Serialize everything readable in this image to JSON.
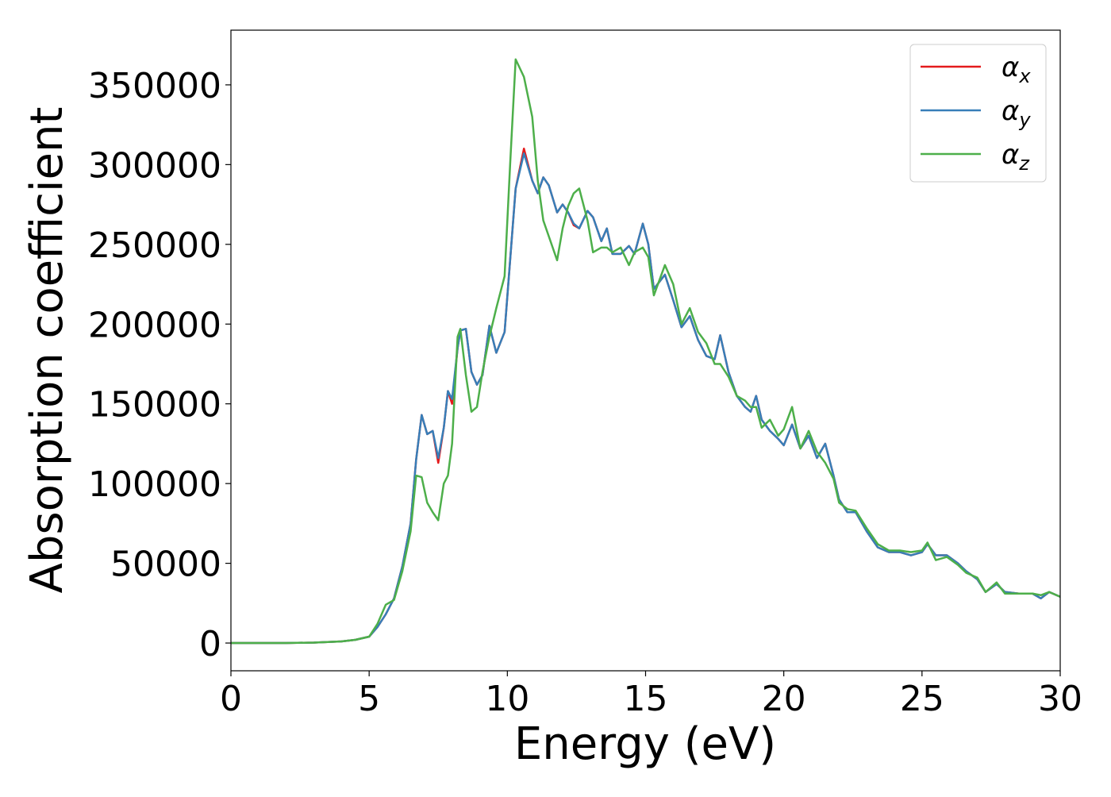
{
  "chart_data": {
    "type": "line",
    "x_label": "Energy (eV)",
    "y_label": "Absorption coefficient",
    "x": [
      0,
      1,
      2,
      3,
      4,
      4.5,
      5,
      5.3,
      5.6,
      5.9,
      6.2,
      6.5,
      6.7,
      6.9,
      7.1,
      7.3,
      7.5,
      7.7,
      7.85,
      8.0,
      8.2,
      8.3,
      8.5,
      8.7,
      8.9,
      9.1,
      9.35,
      9.6,
      9.9,
      10.1,
      10.3,
      10.6,
      10.9,
      11.1,
      11.3,
      11.5,
      11.8,
      12.0,
      12.2,
      12.4,
      12.6,
      12.9,
      13.1,
      13.4,
      13.6,
      13.8,
      14.1,
      14.4,
      14.6,
      14.9,
      15.1,
      15.3,
      15.7,
      16.0,
      16.3,
      16.6,
      16.9,
      17.2,
      17.5,
      17.7,
      18.0,
      18.3,
      18.6,
      18.8,
      19.0,
      19.2,
      19.5,
      19.8,
      20.0,
      20.3,
      20.6,
      20.9,
      21.2,
      21.5,
      21.8,
      22.0,
      22.3,
      22.6,
      23.0,
      23.4,
      23.8,
      24.2,
      24.6,
      25.0,
      25.2,
      25.5,
      25.9,
      26.3,
      26.6,
      27.0,
      27.3,
      27.7,
      28.0,
      28.5,
      29.0,
      29.3,
      29.6,
      30
    ],
    "series": [
      {
        "name": "αx",
        "color": "#e41a1c",
        "values": [
          0,
          0,
          0,
          300,
          1000,
          2000,
          4000,
          10000,
          18000,
          28000,
          48000,
          75000,
          115000,
          143000,
          131000,
          133000,
          113000,
          135000,
          158000,
          150000,
          185000,
          196000,
          197000,
          170000,
          162000,
          168000,
          199000,
          182000,
          195000,
          240000,
          285000,
          310000,
          290000,
          282000,
          292000,
          287000,
          270000,
          275000,
          270000,
          262000,
          260000,
          271000,
          267000,
          252000,
          260000,
          244000,
          244000,
          249000,
          244000,
          263000,
          250000,
          222000,
          231000,
          215000,
          198000,
          205000,
          190000,
          180000,
          178000,
          193000,
          170000,
          155000,
          148000,
          145000,
          155000,
          140000,
          133000,
          128000,
          124000,
          137000,
          122000,
          130000,
          116000,
          125000,
          105000,
          90000,
          82000,
          82000,
          70000,
          60000,
          57000,
          57000,
          55000,
          57000,
          62000,
          55000,
          55000,
          50000,
          45000,
          40000,
          32000,
          37000,
          32000,
          31000,
          31000,
          28000,
          32000,
          29000
        ]
      },
      {
        "name": "αy",
        "color": "#377eb8",
        "values": [
          0,
          0,
          0,
          300,
          1000,
          2000,
          4000,
          10000,
          18000,
          28000,
          48000,
          75000,
          115000,
          143000,
          131000,
          133000,
          116000,
          135000,
          158000,
          153000,
          185000,
          196000,
          197000,
          170000,
          162000,
          168000,
          199000,
          182000,
          195000,
          240000,
          285000,
          307000,
          290000,
          282000,
          292000,
          287000,
          270000,
          275000,
          270000,
          263000,
          260000,
          271000,
          267000,
          252000,
          260000,
          244000,
          244000,
          249000,
          244000,
          263000,
          250000,
          222000,
          231000,
          215000,
          198000,
          205000,
          190000,
          180000,
          178000,
          193000,
          170000,
          155000,
          148000,
          145000,
          155000,
          140000,
          133000,
          128000,
          124000,
          137000,
          122000,
          130000,
          116000,
          125000,
          105000,
          90000,
          82000,
          82000,
          70000,
          60000,
          57000,
          57000,
          55000,
          57000,
          62000,
          55000,
          55000,
          50000,
          45000,
          40000,
          32000,
          37000,
          32000,
          31000,
          31000,
          28000,
          32000,
          29000
        ]
      },
      {
        "name": "αz",
        "color": "#4daf4a",
        "values": [
          0,
          0,
          0,
          300,
          1000,
          2000,
          4000,
          12000,
          24000,
          27000,
          45000,
          70000,
          105000,
          104000,
          88000,
          82000,
          77000,
          100000,
          105000,
          125000,
          192000,
          197000,
          168000,
          145000,
          148000,
          170000,
          192000,
          210000,
          230000,
          300000,
          366000,
          355000,
          330000,
          290000,
          265000,
          255000,
          240000,
          260000,
          274000,
          282000,
          285000,
          265000,
          245000,
          248000,
          248000,
          245000,
          248000,
          237000,
          245000,
          248000,
          242000,
          218000,
          237000,
          225000,
          200000,
          210000,
          195000,
          188000,
          175000,
          175000,
          167000,
          155000,
          152000,
          148000,
          148000,
          135000,
          140000,
          130000,
          134000,
          148000,
          122000,
          133000,
          120000,
          113000,
          103000,
          88000,
          84000,
          83000,
          72000,
          62000,
          58000,
          58000,
          57000,
          58000,
          63000,
          52000,
          54000,
          49000,
          44000,
          41000,
          32000,
          38000,
          31000,
          31000,
          31000,
          30000,
          32000,
          29000
        ]
      }
    ],
    "xlim": [
      0,
      30
    ],
    "xticks": [
      0,
      5,
      10,
      15,
      20,
      25,
      30
    ],
    "ylim": [
      -17400,
      384300
    ],
    "yticks": [
      0,
      50000,
      100000,
      150000,
      200000,
      250000,
      300000,
      350000
    ],
    "grid": false,
    "legend": "upper right"
  }
}
